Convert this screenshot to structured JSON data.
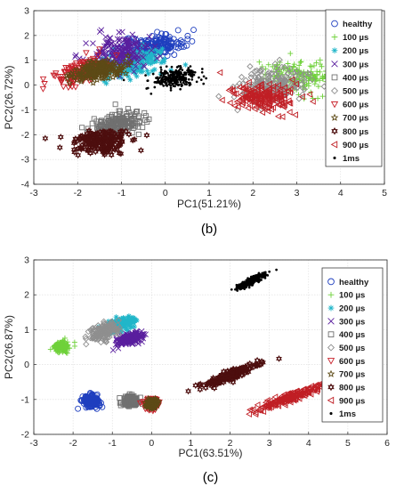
{
  "chart_data": [
    {
      "type": "scatter",
      "panel_label": "(b)",
      "xlabel": "PC1(51.21%)",
      "ylabel": "PC2(26.72%)",
      "xlim": [
        -3,
        5
      ],
      "ylim": [
        -4,
        3
      ],
      "xticks": [
        "-3",
        "-2",
        "-1",
        "0",
        "1",
        "2",
        "3",
        "4",
        "5"
      ],
      "yticks": [
        "3",
        "2",
        "1",
        "0",
        "-1",
        "-2",
        "-3",
        "-4"
      ],
      "grid": true,
      "legend_position": "top-right",
      "series": [
        {
          "name": "healthy",
          "marker": "circle",
          "color": "#1f3fbf",
          "clusters": [
            {
              "cx": -0.3,
              "cy": 1.6,
              "sx": 0.35,
              "sy": 0.2,
              "rho": 0.3
            }
          ]
        },
        {
          "name": "100 µs",
          "marker": "plus",
          "color": "#6fd13a",
          "clusters": [
            {
              "cx": 3.1,
              "cy": 0.35,
              "sx": 0.45,
              "sy": 0.35,
              "rho": -0.2
            }
          ]
        },
        {
          "name": "200 µs",
          "marker": "asterisk",
          "color": "#21b6c9",
          "clusters": [
            {
              "cx": -0.75,
              "cy": 0.9,
              "sx": 0.4,
              "sy": 0.3,
              "rho": 0.3
            }
          ]
        },
        {
          "name": "300 µs",
          "marker": "x",
          "color": "#5a1f9e",
          "clusters": [
            {
              "cx": -1.0,
              "cy": 1.35,
              "sx": 0.35,
              "sy": 0.35,
              "rho": 0.2
            }
          ]
        },
        {
          "name": "400 µs",
          "marker": "square",
          "color": "#707070",
          "clusters": [
            {
              "cx": -1.05,
              "cy": -1.55,
              "sx": 0.3,
              "sy": 0.25,
              "rho": 0.3
            }
          ]
        },
        {
          "name": "500 µs",
          "marker": "diamond",
          "color": "#8f8f8f",
          "clusters": [
            {
              "cx": 2.45,
              "cy": 0.05,
              "sx": 0.4,
              "sy": 0.3,
              "rho": 0.1
            }
          ]
        },
        {
          "name": "600 µs",
          "marker": "triangle-down",
          "color": "#c8202a",
          "clusters": [
            {
              "cx": -1.9,
              "cy": 0.55,
              "sx": 0.3,
              "sy": 0.25,
              "rho": 0.5
            }
          ]
        },
        {
          "name": "700 µs",
          "marker": "star",
          "color": "#5d4a16",
          "clusters": [
            {
              "cx": -1.5,
              "cy": 0.6,
              "sx": 0.3,
              "sy": 0.2,
              "rho": 0.4
            }
          ]
        },
        {
          "name": "800 µs",
          "marker": "hexagram",
          "color": "#4d0e0e",
          "clusters": [
            {
              "cx": -1.45,
              "cy": -2.3,
              "sx": 0.35,
              "sy": 0.25,
              "rho": 0.1
            }
          ]
        },
        {
          "name": "900 µs",
          "marker": "triangle-left",
          "color": "#c01f25",
          "clusters": [
            {
              "cx": 2.2,
              "cy": -0.5,
              "sx": 0.4,
              "sy": 0.3,
              "rho": -0.1
            }
          ]
        },
        {
          "name": "1ms",
          "marker": "dot",
          "color": "#000000",
          "clusters": [
            {
              "cx": 0.25,
              "cy": 0.3,
              "sx": 0.25,
              "sy": 0.18,
              "rho": 0.3
            }
          ]
        }
      ]
    },
    {
      "type": "scatter",
      "panel_label": "(c)",
      "xlabel": "PC1(63.51%)",
      "ylabel": "PC2(26.87%)",
      "xlim": [
        -3,
        6
      ],
      "ylim": [
        -2,
        3
      ],
      "xticks": [
        "-3",
        "-2",
        "-1",
        "0",
        "1",
        "2",
        "3",
        "4",
        "5",
        "6"
      ],
      "yticks": [
        "3",
        "2",
        "1",
        "0",
        "-1",
        "-2"
      ],
      "grid": true,
      "legend_position": "top-right",
      "series": [
        {
          "name": "healthy",
          "marker": "circle",
          "color": "#1f3fbf",
          "clusters": [
            {
              "cx": -1.55,
              "cy": -1.05,
              "sx": 0.1,
              "sy": 0.08,
              "rho": 0
            }
          ]
        },
        {
          "name": "100 µs",
          "marker": "plus",
          "color": "#6fd13a",
          "clusters": [
            {
              "cx": -2.3,
              "cy": 0.52,
              "sx": 0.1,
              "sy": 0.07,
              "rho": 0
            }
          ]
        },
        {
          "name": "200 µs",
          "marker": "asterisk",
          "color": "#21b6c9",
          "clusters": [
            {
              "cx": -0.8,
              "cy": 1.15,
              "sx": 0.2,
              "sy": 0.12,
              "rho": 0.6
            }
          ]
        },
        {
          "name": "300 µs",
          "marker": "x",
          "color": "#5a1f9e",
          "clusters": [
            {
              "cx": -0.55,
              "cy": 0.75,
              "sx": 0.18,
              "sy": 0.1,
              "rho": 0.6
            }
          ]
        },
        {
          "name": "400 µs",
          "marker": "square",
          "color": "#707070",
          "clusters": [
            {
              "cx": -0.55,
              "cy": -1.05,
              "sx": 0.1,
              "sy": 0.07,
              "rho": 0
            }
          ]
        },
        {
          "name": "500 µs",
          "marker": "diamond",
          "color": "#8f8f8f",
          "clusters": [
            {
              "cx": -1.2,
              "cy": 0.95,
              "sx": 0.18,
              "sy": 0.12,
              "rho": 0.5
            }
          ]
        },
        {
          "name": "600 µs",
          "marker": "triangle-down",
          "color": "#c8202a",
          "clusters": [
            {
              "cx": 0.0,
              "cy": -1.12,
              "sx": 0.08,
              "sy": 0.07,
              "rho": 0
            }
          ]
        },
        {
          "name": "700 µs",
          "marker": "star",
          "color": "#5d4a16",
          "clusters": [
            {
              "cx": 0.0,
              "cy": -1.12,
              "sx": 0.07,
              "sy": 0.06,
              "rho": 0
            }
          ]
        },
        {
          "name": "800 µs",
          "marker": "hexagram",
          "color": "#4d0e0e",
          "clusters": [
            {
              "cx": 2.0,
              "cy": -0.3,
              "sx": 0.35,
              "sy": 0.17,
              "rho": 0.92
            }
          ]
        },
        {
          "name": "900 µs",
          "marker": "triangle-left",
          "color": "#c01f25",
          "clusters": [
            {
              "cx": 3.5,
              "cy": -0.95,
              "sx": 0.4,
              "sy": 0.18,
              "rho": 0.93
            }
          ]
        },
        {
          "name": "1ms",
          "marker": "dot",
          "color": "#000000",
          "clusters": [
            {
              "cx": 2.55,
              "cy": 2.4,
              "sx": 0.18,
              "sy": 0.11,
              "rho": 0.85
            }
          ]
        }
      ]
    }
  ]
}
